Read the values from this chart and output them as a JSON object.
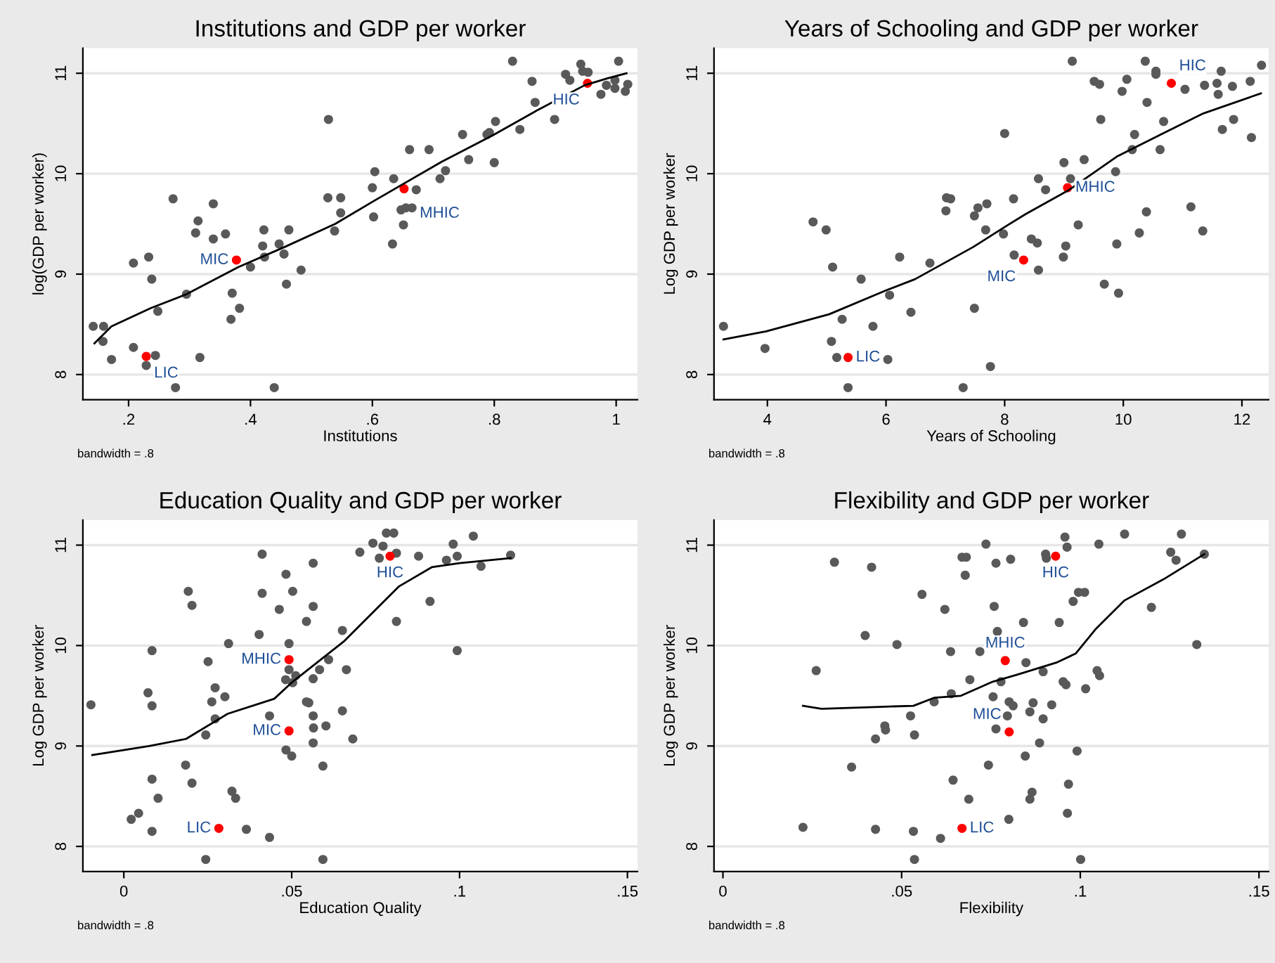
{
  "chart_data": [
    {
      "type": "scatter",
      "title": "Institutions and GDP per worker",
      "xlabel": "Institutions",
      "ylabel": "log(GDP per worker)",
      "xlim": [
        0.125,
        1.035
      ],
      "ylim": [
        7.75,
        11.25
      ],
      "xticks": [
        {
          "value": 0.2,
          "label": ".2"
        },
        {
          "value": 0.4,
          "label": ".4"
        },
        {
          "value": 0.6,
          "label": ".6"
        },
        {
          "value": 0.8,
          "label": ".8"
        },
        1
      ],
      "yticks": [
        8,
        9,
        10,
        11
      ],
      "grid": "y",
      "legend": false,
      "series": [
        {
          "marker": "circle",
          "color": "#595959",
          "x": [
            0.142,
            0.159,
            0.158,
            0.172,
            0.208,
            0.233,
            0.238,
            0.248,
            0.208,
            0.229,
            0.244,
            0.273,
            0.277,
            0.295,
            0.314,
            0.31,
            0.317,
            0.339,
            0.339,
            0.359,
            0.37,
            0.368,
            0.382,
            0.4,
            0.422,
            0.42,
            0.423,
            0.447,
            0.455,
            0.463,
            0.459,
            0.483,
            0.439,
            0.528,
            0.527,
            0.548,
            0.548,
            0.538,
            0.6,
            0.604,
            0.602,
            0.635,
            0.633,
            0.647,
            0.651,
            0.655,
            0.665,
            0.672,
            0.661,
            0.693,
            0.711,
            0.72,
            0.748,
            0.758,
            0.788,
            0.792,
            0.802,
            0.8,
            0.83,
            0.842,
            0.862,
            0.867,
            0.899,
            0.917,
            0.924,
            0.942,
            0.945,
            0.954,
            0.975,
            0.984,
            0.998,
            0.998,
            1.004,
            1.015,
            1.019
          ],
          "values": [
            8.48,
            8.48,
            8.33,
            8.15,
            9.11,
            9.17,
            8.95,
            8.63,
            8.27,
            8.09,
            8.19,
            9.75,
            7.87,
            8.8,
            9.53,
            9.41,
            8.17,
            9.7,
            9.35,
            9.4,
            8.81,
            8.55,
            8.66,
            9.07,
            9.44,
            9.28,
            9.17,
            9.3,
            9.2,
            9.44,
            8.9,
            9.04,
            7.87,
            10.54,
            9.76,
            9.76,
            9.61,
            9.43,
            9.86,
            10.02,
            9.57,
            9.95,
            9.3,
            9.64,
            9.49,
            9.66,
            9.66,
            9.84,
            10.24,
            10.24,
            9.95,
            10.03,
            10.39,
            10.14,
            10.39,
            10.41,
            10.52,
            10.11,
            11.12,
            10.44,
            10.92,
            10.71,
            10.54,
            10.99,
            10.93,
            11.09,
            11.02,
            11.01,
            10.79,
            10.88,
            10.93,
            10.85,
            11.12,
            10.82,
            10.89
          ]
        },
        {
          "marker": "circle",
          "color": "#ff0000",
          "x": [
            0.229,
            0.377,
            0.652,
            0.953
          ],
          "values": [
            8.18,
            9.14,
            9.85,
            10.9
          ]
        },
        {
          "type": "line",
          "color": "#000000",
          "line_style": "solid",
          "x": [
            0.144,
            0.172,
            0.236,
            0.295,
            0.38,
            0.456,
            0.539,
            0.6,
            0.714,
            0.797,
            0.873,
            0.948,
            0.986,
            1.017
          ],
          "values": [
            8.31,
            8.48,
            8.66,
            8.8,
            9.07,
            9.27,
            9.5,
            9.72,
            10.12,
            10.38,
            10.64,
            10.88,
            10.95,
            11.0
          ]
        }
      ],
      "annotations": [
        {
          "text": "LIC",
          "x": 0.229,
          "y": 8.18
        },
        {
          "text": "MIC",
          "x": 0.377,
          "y": 9.14
        },
        {
          "text": "MHIC",
          "x": 0.652,
          "y": 9.85
        },
        {
          "text": "HIC",
          "x": 0.953,
          "y": 10.9
        },
        "bandwidth = .8"
      ]
    },
    {
      "type": "scatter",
      "title": "Years of Schooling and GDP per worker",
      "xlabel": "Years of Schooling",
      "ylabel": "Log GDP per worker",
      "xlim": [
        3.1,
        12.45
      ],
      "ylim": [
        7.75,
        11.25
      ],
      "xticks": [
        4,
        6,
        8,
        10,
        12
      ],
      "yticks": [
        8,
        9,
        10,
        11
      ],
      "grid": "y",
      "legend": false,
      "series": [
        {
          "marker": "circle",
          "color": "#595959",
          "x": [
            3.26,
            3.96,
            4.77,
            4.99,
            5.1,
            5.08,
            5.26,
            5.17,
            5.36,
            5.58,
            5.78,
            6.03,
            6.06,
            6.23,
            6.42,
            6.74,
            7.01,
            7.02,
            7.09,
            7.3,
            7.49,
            7.49,
            7.55,
            7.68,
            7.7,
            7.76,
            7.98,
            8.0,
            8.15,
            8.16,
            8.45,
            8.55,
            8.57,
            8.57,
            8.69,
            8.99,
            9.0,
            9.03,
            9.11,
            9.14,
            9.24,
            9.34,
            9.51,
            9.6,
            9.62,
            9.68,
            9.87,
            9.89,
            9.92,
            9.98,
            10.06,
            10.15,
            10.19,
            10.27,
            10.37,
            10.39,
            10.4,
            10.55,
            10.55,
            10.62,
            10.68,
            11.04,
            11.14,
            11.34,
            11.37,
            11.58,
            11.6,
            11.65,
            11.67,
            11.84,
            11.86,
            12.14,
            12.16,
            12.33
          ],
          "values": [
            8.48,
            8.26,
            9.52,
            9.44,
            9.07,
            8.33,
            8.55,
            8.17,
            7.87,
            8.95,
            8.48,
            8.15,
            8.79,
            9.17,
            8.62,
            9.11,
            9.63,
            9.76,
            9.75,
            7.87,
            8.66,
            9.58,
            9.66,
            9.44,
            9.7,
            8.08,
            9.4,
            10.4,
            9.75,
            9.19,
            9.35,
            9.31,
            9.95,
            9.04,
            9.84,
            9.17,
            10.11,
            9.28,
            9.95,
            11.12,
            9.49,
            10.14,
            10.92,
            10.89,
            10.54,
            8.9,
            10.02,
            9.3,
            8.81,
            10.82,
            10.94,
            10.24,
            10.39,
            9.41,
            11.12,
            9.62,
            10.71,
            11.02,
            10.99,
            10.24,
            10.52,
            10.84,
            9.67,
            9.43,
            10.88,
            10.9,
            10.79,
            11.02,
            10.44,
            10.87,
            10.54,
            10.92,
            10.36,
            11.08
          ]
        },
        {
          "marker": "circle",
          "color": "#ff0000",
          "x": [
            5.36,
            8.32,
            9.06,
            10.81
          ],
          "values": [
            8.17,
            9.14,
            9.86,
            10.9
          ]
        },
        {
          "type": "line",
          "color": "#000000",
          "line_style": "solid",
          "x": [
            3.26,
            3.98,
            5.04,
            6.01,
            6.49,
            7.47,
            8.03,
            8.36,
            9.09,
            9.89,
            10.7,
            11.35,
            12.32
          ],
          "values": [
            8.35,
            8.43,
            8.6,
            8.84,
            8.95,
            9.27,
            9.48,
            9.6,
            9.84,
            10.17,
            10.41,
            10.6,
            10.8
          ]
        }
      ],
      "annotations": [
        {
          "text": "LIC",
          "x": 5.36,
          "y": 8.17
        },
        {
          "text": "MIC",
          "x": 8.32,
          "y": 9.14
        },
        {
          "text": "MHIC",
          "x": 9.06,
          "y": 9.86
        },
        {
          "text": "HIC",
          "x": 10.81,
          "y": 10.9
        },
        "bandwidth = .8"
      ]
    },
    {
      "type": "scatter",
      "title": "Education Quality and GDP per worker",
      "xlabel": "Education Quality",
      "ylabel": "Log GDP per worker",
      "xlim": [
        -0.0122,
        0.153
      ],
      "ylim": [
        7.75,
        11.25
      ],
      "xticks": [
        0,
        {
          "value": 0.05,
          "label": ".05"
        },
        {
          "value": 0.1,
          "label": ".1"
        },
        {
          "value": 0.15,
          "label": ".15"
        }
      ],
      "yticks": [
        8,
        9,
        10,
        11
      ],
      "grid": "y",
      "legend": false,
      "series": [
        {
          "marker": "circle",
          "color": "#595959",
          "x": [
            -0.0098,
            0.0072,
            0.0084,
            0.0084,
            0.0022,
            0.0044,
            0.0084,
            0.0084,
            0.0102,
            0.0184,
            0.0192,
            0.0203,
            0.0203,
            0.0244,
            0.0244,
            0.0251,
            0.0262,
            0.0272,
            0.0272,
            0.0301,
            0.0312,
            0.0322,
            0.0333,
            0.0365,
            0.0403,
            0.0412,
            0.0412,
            0.0434,
            0.0434,
            0.0463,
            0.0483,
            0.0482,
            0.0483,
            0.0492,
            0.0492,
            0.05,
            0.0503,
            0.0512,
            0.0503,
            0.0544,
            0.0544,
            0.0551,
            0.0564,
            0.0564,
            0.0564,
            0.0564,
            0.0564,
            0.0565,
            0.0583,
            0.0593,
            0.0593,
            0.0602,
            0.061,
            0.0651,
            0.0651,
            0.0663,
            0.0682,
            0.0703,
            0.0742,
            0.0761,
            0.0772,
            0.0782,
            0.0804,
            0.0812,
            0.0812,
            0.0878,
            0.0912,
            0.0961,
            0.0981,
            0.0993,
            0.0993,
            0.1041,
            0.1064,
            0.1152
          ],
          "values": [
            9.41,
            9.53,
            9.95,
            9.4,
            8.27,
            8.33,
            8.15,
            8.67,
            8.48,
            8.81,
            10.54,
            10.4,
            8.63,
            7.87,
            9.11,
            9.84,
            9.44,
            9.58,
            9.27,
            9.49,
            10.02,
            8.55,
            8.48,
            8.17,
            10.11,
            10.91,
            10.52,
            8.09,
            9.3,
            10.36,
            10.71,
            9.66,
            8.96,
            10.02,
            9.76,
            8.9,
            10.54,
            9.7,
            9.63,
            9.44,
            10.24,
            9.43,
            10.82,
            10.39,
            9.67,
            9.3,
            9.03,
            9.18,
            9.76,
            7.87,
            8.8,
            9.2,
            9.86,
            10.15,
            9.35,
            9.76,
            9.07,
            10.93,
            11.02,
            10.87,
            10.99,
            11.12,
            11.12,
            10.24,
            10.92,
            10.89,
            10.44,
            10.85,
            11.01,
            10.89,
            9.95,
            11.09,
            10.79,
            10.9
          ]
        },
        {
          "marker": "circle",
          "color": "#ff0000",
          "x": [
            0.0283,
            0.0492,
            0.0492,
            0.0793
          ],
          "values": [
            8.18,
            9.15,
            9.86,
            10.89
          ]
        },
        {
          "type": "line",
          "color": "#000000",
          "line_style": "solid",
          "x": [
            -0.0094,
            0.0075,
            0.0185,
            0.0309,
            0.0448,
            0.0503,
            0.0655,
            0.082,
            0.0917,
            0.1,
            0.1152
          ],
          "values": [
            8.91,
            9.0,
            9.07,
            9.32,
            9.47,
            9.64,
            10.04,
            10.59,
            10.78,
            10.82,
            10.87
          ]
        }
      ],
      "annotations": [
        {
          "text": "LIC",
          "x": 0.0283,
          "y": 8.18
        },
        {
          "text": "MIC",
          "x": 0.0492,
          "y": 9.15
        },
        {
          "text": "MHIC",
          "x": 0.0492,
          "y": 9.86
        },
        {
          "text": "HIC",
          "x": 0.0793,
          "y": 10.89
        },
        "bandwidth = .8"
      ]
    },
    {
      "type": "scatter",
      "title": "Flexibility and GDP per worker",
      "xlabel": "Flexibility",
      "ylabel": "Log GDP per worker",
      "xlim": [
        -0.0025,
        0.1527
      ],
      "ylim": [
        7.75,
        11.25
      ],
      "xticks": [
        0,
        {
          "value": 0.05,
          "label": ".05"
        },
        {
          "value": 0.1,
          "label": ".1"
        },
        {
          "value": 0.15,
          "label": ".15"
        }
      ],
      "yticks": [
        8,
        9,
        10,
        11
      ],
      "grid": "y",
      "legend": false,
      "series": [
        {
          "marker": "circle",
          "color": "#595959",
          "x": [
            0.0224,
            0.0261,
            0.0312,
            0.036,
            0.0398,
            0.0416,
            0.0427,
            0.0427,
            0.0453,
            0.0455,
            0.0487,
            0.0525,
            0.0533,
            0.0536,
            0.0536,
            0.0557,
            0.0591,
            0.0609,
            0.0621,
            0.0637,
            0.0639,
            0.0644,
            0.0669,
            0.0681,
            0.0678,
            0.0688,
            0.0691,
            0.0719,
            0.0736,
            0.0743,
            0.0756,
            0.0759,
            0.0764,
            0.0764,
            0.0768,
            0.0778,
            0.0796,
            0.08,
            0.0801,
            0.0805,
            0.0812,
            0.0841,
            0.0846,
            0.0848,
            0.0859,
            0.0859,
            0.0865,
            0.0868,
            0.0886,
            0.0896,
            0.0896,
            0.0903,
            0.0905,
            0.092,
            0.0941,
            0.0952,
            0.0957,
            0.096,
            0.0963,
            0.0967,
            0.0964,
            0.098,
            0.0991,
            0.0995,
            0.1001,
            0.1012,
            0.1015,
            0.1047,
            0.1052,
            0.1054,
            0.1124,
            0.1199,
            0.1253,
            0.1268,
            0.1283,
            0.1326,
            0.1347
          ],
          "values": [
            8.19,
            9.75,
            10.83,
            8.79,
            10.1,
            10.78,
            8.17,
            9.07,
            9.2,
            9.16,
            10.01,
            9.3,
            8.15,
            9.11,
            7.87,
            10.51,
            9.44,
            8.08,
            10.36,
            9.94,
            9.52,
            8.66,
            10.88,
            10.88,
            10.7,
            8.47,
            9.66,
            9.94,
            11.01,
            8.81,
            9.49,
            10.39,
            10.82,
            9.17,
            10.14,
            9.64,
            9.3,
            8.27,
            9.44,
            10.86,
            9.4,
            10.23,
            8.9,
            9.83,
            9.34,
            8.47,
            8.54,
            9.43,
            9.03,
            9.74,
            9.27,
            10.91,
            10.87,
            9.41,
            10.23,
            9.64,
            11.08,
            9.61,
            10.98,
            8.62,
            8.33,
            10.44,
            8.95,
            10.53,
            7.87,
            10.53,
            9.57,
            9.75,
            11.01,
            9.7,
            11.11,
            10.38,
            10.93,
            10.85,
            11.11,
            10.01,
            10.91
          ]
        },
        {
          "marker": "circle",
          "color": "#ff0000",
          "x": [
            0.0669,
            0.0801,
            0.079,
            0.0931
          ],
          "values": [
            8.18,
            9.14,
            9.85,
            10.89
          ]
        },
        {
          "type": "line",
          "color": "#000000",
          "line_style": "solid",
          "x": [
            0.0224,
            0.0276,
            0.044,
            0.0533,
            0.0591,
            0.0666,
            0.0755,
            0.0823,
            0.0933,
            0.0987,
            0.1042,
            0.1124,
            0.1233,
            0.1347
          ],
          "values": [
            9.4,
            9.37,
            9.39,
            9.4,
            9.48,
            9.5,
            9.64,
            9.71,
            9.83,
            9.92,
            10.16,
            10.45,
            10.66,
            10.91
          ]
        }
      ],
      "annotations": [
        {
          "text": "LIC",
          "x": 0.0669,
          "y": 8.18
        },
        {
          "text": "MIC",
          "x": 0.0801,
          "y": 9.14
        },
        {
          "text": "MHIC",
          "x": 0.079,
          "y": 9.85
        },
        {
          "text": "HIC",
          "x": 0.0931,
          "y": 10.89
        },
        "bandwidth = .8"
      ]
    }
  ]
}
